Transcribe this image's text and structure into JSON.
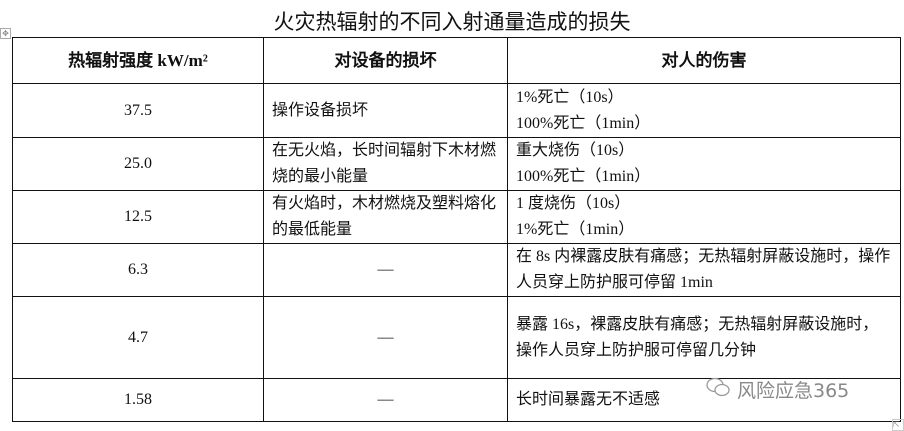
{
  "title": "火灾热辐射的不同入射通量造成的损失",
  "headers": [
    "热辐射强度 kW/m²",
    "对设备的损坏",
    "对人的伤害"
  ],
  "rows": [
    {
      "intensity": "37.5",
      "equipment": "操作设备损坏",
      "human": [
        "1%死亡（10s）",
        "100%死亡（1min）"
      ]
    },
    {
      "intensity": "25.0",
      "equipment": "在无火焰，长时间辐射下木材燃烧的最小能量",
      "human": [
        "重大烧伤（10s）",
        "100%死亡（1min）"
      ]
    },
    {
      "intensity": "12.5",
      "equipment": "有火焰时，木材燃烧及塑料熔化的最低能量",
      "human": [
        "1 度烧伤（10s）",
        "1%死亡（1min）"
      ]
    },
    {
      "intensity": "6.3",
      "equipment": "—",
      "human": [
        "在 8s 内裸露皮肤有痛感；无热辐射屏蔽设施时，操作人员穿上防护服可停留 1min"
      ]
    },
    {
      "intensity": "4.7",
      "equipment": "—",
      "human": [
        "暴露 16s，裸露皮肤有痛感；无热辐射屏蔽设施时，操作人员穿上防护服可停留几分钟"
      ]
    },
    {
      "intensity": "1.58",
      "equipment": "—",
      "human": [
        "长时间暴露无不适感"
      ]
    }
  ],
  "watermark": "风险应急365"
}
